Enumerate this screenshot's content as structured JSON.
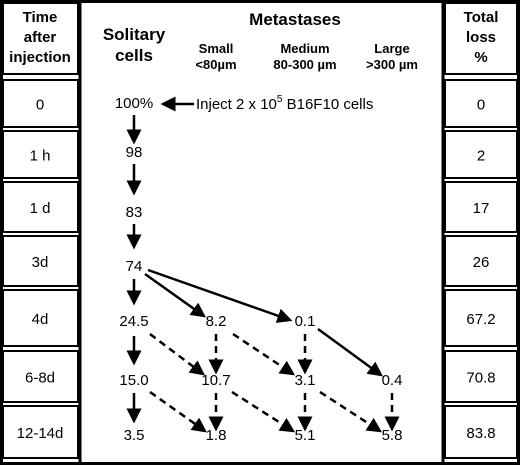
{
  "headers": {
    "time": [
      "Time",
      "after",
      "injection"
    ],
    "solitary": [
      "Solitary",
      "cells"
    ],
    "metastases": "Metastases",
    "small": [
      "Small",
      "<80µm"
    ],
    "medium": [
      "Medium",
      "80-300 µm"
    ],
    "large": [
      "Large",
      ">300 µm"
    ],
    "loss": [
      "Total",
      "loss",
      "%"
    ]
  },
  "rows": [
    {
      "time": "0",
      "solitary": "100%",
      "small": "",
      "medium": "",
      "large": "",
      "loss": "0"
    },
    {
      "time": "1 h",
      "solitary": "98",
      "small": "",
      "medium": "",
      "large": "",
      "loss": "2"
    },
    {
      "time": "1 d",
      "solitary": "83",
      "small": "",
      "medium": "",
      "large": "",
      "loss": "17"
    },
    {
      "time": "3d",
      "solitary": "74",
      "small": "",
      "medium": "",
      "large": "",
      "loss": "26"
    },
    {
      "time": "4d",
      "solitary": "24.5",
      "small": "8.2",
      "medium": "0.1",
      "large": "",
      "loss": "67.2"
    },
    {
      "time": "6-8d",
      "solitary": "15.0",
      "small": "10.7",
      "medium": "3.1",
      "large": "0.4",
      "loss": "70.8"
    },
    {
      "time": "12-14d",
      "solitary": "3.5",
      "small": "1.8",
      "medium": "5.1",
      "large": "5.8",
      "loss": "83.8"
    }
  ],
  "injection": {
    "text": "Inject 2 x 10",
    "exponent": "5",
    "suffix": " B16F10 cells"
  }
}
